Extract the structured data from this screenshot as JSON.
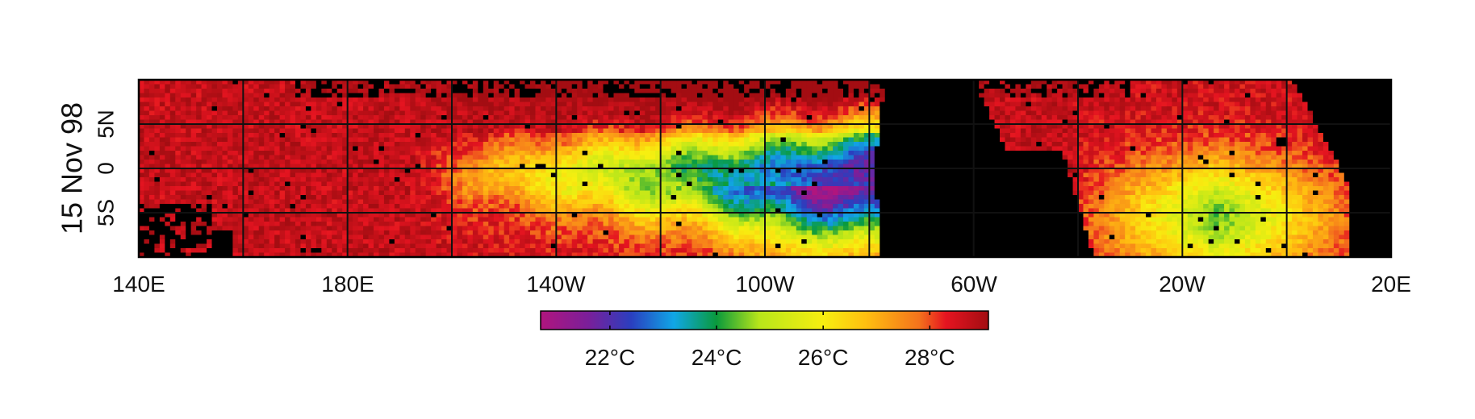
{
  "date_label": "15 Nov 98",
  "chart_data": {
    "type": "heatmap",
    "title": "",
    "xlabel": "",
    "ylabel": "",
    "x_ticks": [
      "140E",
      "180E",
      "140W",
      "100W",
      "60W",
      "20W",
      "20E"
    ],
    "y_ticks": [
      "5N",
      "0",
      "5S"
    ],
    "lon_range": [
      140,
      380
    ],
    "lat_range": [
      -10,
      10
    ],
    "grid": true,
    "land_color": "#000000",
    "colorbar": {
      "range_celsius": [
        20.7,
        29.1
      ],
      "tick_values": [
        22,
        24,
        26,
        28
      ],
      "tick_labels": [
        "22°C",
        "24°C",
        "26°C",
        "28°C"
      ],
      "stops": [
        {
          "value": 20.7,
          "color": "#b0157e"
        },
        {
          "value": 21.6,
          "color": "#7a1f9a"
        },
        {
          "value": 22.4,
          "color": "#2a3fbf"
        },
        {
          "value": 23.2,
          "color": "#10a6e6"
        },
        {
          "value": 24.0,
          "color": "#0a9a3c"
        },
        {
          "value": 24.8,
          "color": "#b8e61a"
        },
        {
          "value": 26.0,
          "color": "#f7ef10"
        },
        {
          "value": 26.8,
          "color": "#ffbf10"
        },
        {
          "value": 27.8,
          "color": "#f5731c"
        },
        {
          "value": 28.3,
          "color": "#e51420"
        },
        {
          "value": 29.1,
          "color": "#a30d12"
        }
      ]
    }
  }
}
